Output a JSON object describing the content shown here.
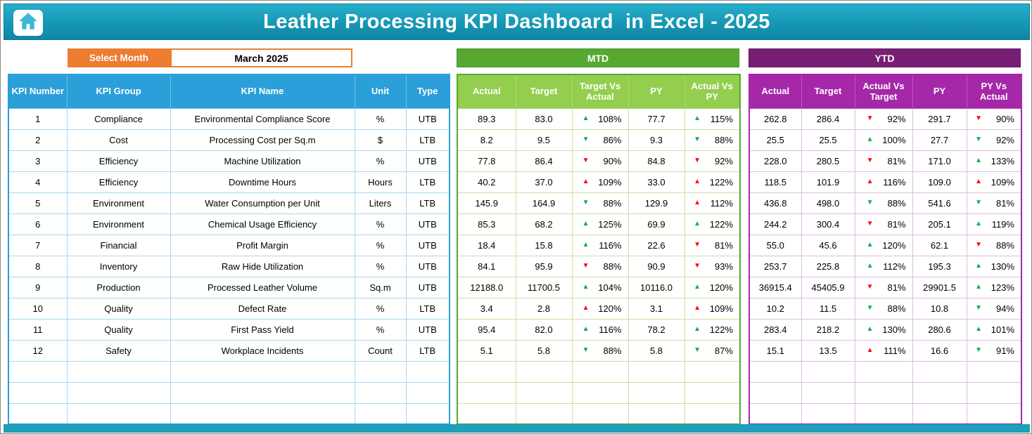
{
  "banner": {
    "title": "Leather Processing KPI Dashboard  in Excel - 2025"
  },
  "controls": {
    "select_month_label": "Select Month",
    "selected_month": "March 2025"
  },
  "sections": {
    "mtd": "MTD",
    "ytd": "YTD"
  },
  "headers": {
    "left": [
      "KPI Number",
      "KPI Group",
      "KPI Name",
      "Unit",
      "Type"
    ],
    "mtd": [
      "Actual",
      "Target",
      "Target Vs Actual",
      "PY",
      "Actual Vs PY"
    ],
    "ytd": [
      "Actual",
      "Target",
      "Actual Vs Target",
      "PY",
      "PY Vs Actual"
    ]
  },
  "rows": [
    {
      "number": "1",
      "group": "Compliance",
      "name": "Environmental Compliance Score",
      "unit": "%",
      "type": "UTB",
      "mtd": {
        "actual": "89.3",
        "target": "83.0",
        "target_vs_actual": {
          "dir": "up",
          "status": "good",
          "value": "108%"
        },
        "py": "77.7",
        "actual_vs_py": {
          "dir": "up",
          "status": "good",
          "value": "115%"
        }
      },
      "ytd": {
        "actual": "262.8",
        "target": "286.4",
        "actual_vs_target": {
          "dir": "down",
          "status": "bad",
          "value": "92%"
        },
        "py": "291.7",
        "py_vs_actual": {
          "dir": "down",
          "status": "bad",
          "value": "90%"
        }
      }
    },
    {
      "number": "2",
      "group": "Cost",
      "name": "Processing Cost per Sq.m",
      "unit": "$",
      "type": "LTB",
      "mtd": {
        "actual": "8.2",
        "target": "9.5",
        "target_vs_actual": {
          "dir": "down",
          "status": "good",
          "value": "86%"
        },
        "py": "9.3",
        "actual_vs_py": {
          "dir": "down",
          "status": "good",
          "value": "88%"
        }
      },
      "ytd": {
        "actual": "25.5",
        "target": "25.5",
        "actual_vs_target": {
          "dir": "up",
          "status": "good",
          "value": "100%"
        },
        "py": "27.7",
        "py_vs_actual": {
          "dir": "down",
          "status": "good",
          "value": "92%"
        }
      }
    },
    {
      "number": "3",
      "group": "Efficiency",
      "name": "Machine Utilization",
      "unit": "%",
      "type": "UTB",
      "mtd": {
        "actual": "77.8",
        "target": "86.4",
        "target_vs_actual": {
          "dir": "down",
          "status": "bad",
          "value": "90%"
        },
        "py": "84.8",
        "actual_vs_py": {
          "dir": "down",
          "status": "bad",
          "value": "92%"
        }
      },
      "ytd": {
        "actual": "228.0",
        "target": "280.5",
        "actual_vs_target": {
          "dir": "down",
          "status": "bad",
          "value": "81%"
        },
        "py": "171.0",
        "py_vs_actual": {
          "dir": "up",
          "status": "good",
          "value": "133%"
        }
      }
    },
    {
      "number": "4",
      "group": "Efficiency",
      "name": "Downtime Hours",
      "unit": "Hours",
      "type": "LTB",
      "mtd": {
        "actual": "40.2",
        "target": "37.0",
        "target_vs_actual": {
          "dir": "up",
          "status": "bad",
          "value": "109%"
        },
        "py": "33.0",
        "actual_vs_py": {
          "dir": "up",
          "status": "bad",
          "value": "122%"
        }
      },
      "ytd": {
        "actual": "118.5",
        "target": "101.9",
        "actual_vs_target": {
          "dir": "up",
          "status": "bad",
          "value": "116%"
        },
        "py": "109.0",
        "py_vs_actual": {
          "dir": "up",
          "status": "bad",
          "value": "109%"
        }
      }
    },
    {
      "number": "5",
      "group": "Environment",
      "name": "Water Consumption per Unit",
      "unit": "Liters",
      "type": "LTB",
      "mtd": {
        "actual": "145.9",
        "target": "164.9",
        "target_vs_actual": {
          "dir": "down",
          "status": "good",
          "value": "88%"
        },
        "py": "129.9",
        "actual_vs_py": {
          "dir": "up",
          "status": "bad",
          "value": "112%"
        }
      },
      "ytd": {
        "actual": "436.8",
        "target": "498.0",
        "actual_vs_target": {
          "dir": "down",
          "status": "good",
          "value": "88%"
        },
        "py": "541.6",
        "py_vs_actual": {
          "dir": "down",
          "status": "good",
          "value": "81%"
        }
      }
    },
    {
      "number": "6",
      "group": "Environment",
      "name": "Chemical Usage Efficiency",
      "unit": "%",
      "type": "UTB",
      "mtd": {
        "actual": "85.3",
        "target": "68.2",
        "target_vs_actual": {
          "dir": "up",
          "status": "good",
          "value": "125%"
        },
        "py": "69.9",
        "actual_vs_py": {
          "dir": "up",
          "status": "good",
          "value": "122%"
        }
      },
      "ytd": {
        "actual": "244.2",
        "target": "300.4",
        "actual_vs_target": {
          "dir": "down",
          "status": "bad",
          "value": "81%"
        },
        "py": "205.1",
        "py_vs_actual": {
          "dir": "up",
          "status": "good",
          "value": "119%"
        }
      }
    },
    {
      "number": "7",
      "group": "Financial",
      "name": "Profit Margin",
      "unit": "%",
      "type": "UTB",
      "mtd": {
        "actual": "18.4",
        "target": "15.8",
        "target_vs_actual": {
          "dir": "up",
          "status": "good",
          "value": "116%"
        },
        "py": "22.6",
        "actual_vs_py": {
          "dir": "down",
          "status": "bad",
          "value": "81%"
        }
      },
      "ytd": {
        "actual": "55.0",
        "target": "45.6",
        "actual_vs_target": {
          "dir": "up",
          "status": "good",
          "value": "120%"
        },
        "py": "62.1",
        "py_vs_actual": {
          "dir": "down",
          "status": "bad",
          "value": "88%"
        }
      }
    },
    {
      "number": "8",
      "group": "Inventory",
      "name": "Raw Hide Utilization",
      "unit": "%",
      "type": "UTB",
      "mtd": {
        "actual": "84.1",
        "target": "95.9",
        "target_vs_actual": {
          "dir": "down",
          "status": "bad",
          "value": "88%"
        },
        "py": "90.9",
        "actual_vs_py": {
          "dir": "down",
          "status": "bad",
          "value": "93%"
        }
      },
      "ytd": {
        "actual": "253.7",
        "target": "225.8",
        "actual_vs_target": {
          "dir": "up",
          "status": "good",
          "value": "112%"
        },
        "py": "195.3",
        "py_vs_actual": {
          "dir": "up",
          "status": "good",
          "value": "130%"
        }
      }
    },
    {
      "number": "9",
      "group": "Production",
      "name": "Processed Leather Volume",
      "unit": "Sq.m",
      "type": "UTB",
      "mtd": {
        "actual": "12188.0",
        "target": "11700.5",
        "target_vs_actual": {
          "dir": "up",
          "status": "good",
          "value": "104%"
        },
        "py": "10116.0",
        "actual_vs_py": {
          "dir": "up",
          "status": "good",
          "value": "120%"
        }
      },
      "ytd": {
        "actual": "36915.4",
        "target": "45405.9",
        "actual_vs_target": {
          "dir": "down",
          "status": "bad",
          "value": "81%"
        },
        "py": "29901.5",
        "py_vs_actual": {
          "dir": "up",
          "status": "good",
          "value": "123%"
        }
      }
    },
    {
      "number": "10",
      "group": "Quality",
      "name": "Defect Rate",
      "unit": "%",
      "type": "LTB",
      "mtd": {
        "actual": "3.4",
        "target": "2.8",
        "target_vs_actual": {
          "dir": "up",
          "status": "bad",
          "value": "120%"
        },
        "py": "3.1",
        "actual_vs_py": {
          "dir": "up",
          "status": "bad",
          "value": "109%"
        }
      },
      "ytd": {
        "actual": "10.2",
        "target": "11.5",
        "actual_vs_target": {
          "dir": "down",
          "status": "good",
          "value": "88%"
        },
        "py": "10.8",
        "py_vs_actual": {
          "dir": "down",
          "status": "good",
          "value": "94%"
        }
      }
    },
    {
      "number": "11",
      "group": "Quality",
      "name": "First Pass Yield",
      "unit": "%",
      "type": "UTB",
      "mtd": {
        "actual": "95.4",
        "target": "82.0",
        "target_vs_actual": {
          "dir": "up",
          "status": "good",
          "value": "116%"
        },
        "py": "78.2",
        "actual_vs_py": {
          "dir": "up",
          "status": "good",
          "value": "122%"
        }
      },
      "ytd": {
        "actual": "283.4",
        "target": "218.2",
        "actual_vs_target": {
          "dir": "up",
          "status": "good",
          "value": "130%"
        },
        "py": "280.6",
        "py_vs_actual": {
          "dir": "up",
          "status": "good",
          "value": "101%"
        }
      }
    },
    {
      "number": "12",
      "group": "Safety",
      "name": "Workplace Incidents",
      "unit": "Count",
      "type": "LTB",
      "mtd": {
        "actual": "5.1",
        "target": "5.8",
        "target_vs_actual": {
          "dir": "down",
          "status": "good",
          "value": "88%"
        },
        "py": "5.8",
        "actual_vs_py": {
          "dir": "down",
          "status": "good",
          "value": "87%"
        }
      },
      "ytd": {
        "actual": "15.1",
        "target": "13.5",
        "actual_vs_target": {
          "dir": "up",
          "status": "bad",
          "value": "111%"
        },
        "py": "16.6",
        "py_vs_actual": {
          "dir": "down",
          "status": "good",
          "value": "91%"
        }
      }
    }
  ],
  "empty_row_count": 3,
  "colors": {
    "green_arrow": "#00B050",
    "red_arrow": "#FF0000",
    "orange": "#ED7D31",
    "blue_header": "#2B9FD9",
    "mtd_green": "#56A831",
    "mtd_light_green": "#94CE4E",
    "ytd_purple": "#781E74",
    "ytd_magenta": "#A428A8",
    "banner_teal": "#1697B4"
  }
}
